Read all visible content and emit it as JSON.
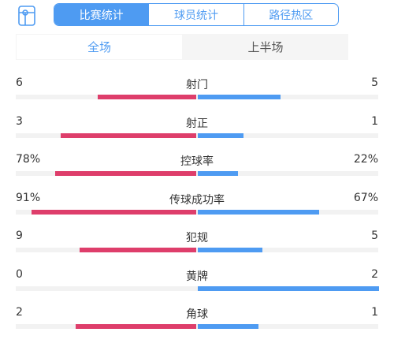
{
  "tabs": [
    "比赛统计",
    "球员统计",
    "路径热区"
  ],
  "subtabs": [
    "全场",
    "上半场"
  ],
  "colors": {
    "home": "#de3e6b",
    "away": "#4e9bf2",
    "accent": "#4e9bf2"
  },
  "stats": [
    {
      "label": "射门",
      "left": "6",
      "right": "5",
      "left_share": 0.545,
      "right_share": 0.455
    },
    {
      "label": "射正",
      "left": "3",
      "right": "1",
      "left_share": 0.75,
      "right_share": 0.25
    },
    {
      "label": "控球率",
      "left": "78%",
      "right": "22%",
      "left_share": 0.78,
      "right_share": 0.22
    },
    {
      "label": "传球成功率",
      "left": "91%",
      "right": "67%",
      "left_share": 0.91,
      "right_share": 0.67
    },
    {
      "label": "犯规",
      "left": "9",
      "right": "5",
      "left_share": 0.643,
      "right_share": 0.357
    },
    {
      "label": "黄牌",
      "left": "0",
      "right": "2",
      "left_share": 0.0,
      "right_share": 1.0
    },
    {
      "label": "角球",
      "left": "2",
      "right": "1",
      "left_share": 0.667,
      "right_share": 0.333
    }
  ]
}
